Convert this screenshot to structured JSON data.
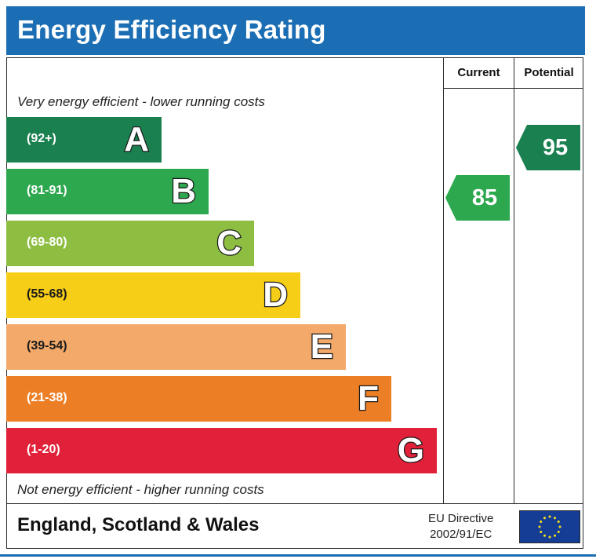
{
  "title": "Energy Efficiency Rating",
  "columns": {
    "current": "Current",
    "potential": "Potential"
  },
  "captions": {
    "top": "Very energy efficient - lower running costs",
    "bottom": "Not energy efficient - higher running costs"
  },
  "footer": {
    "region": "England, Scotland & Wales",
    "directive_line1": "EU Directive",
    "directive_line2": "2002/91/EC",
    "flag_icon": "eu-flag-icon"
  },
  "colors": {
    "title_bar": "#1b6db4",
    "A": "#1a8050",
    "B": "#2da84e",
    "C": "#8dbe42",
    "D": "#f6cd17",
    "E": "#f2a96a",
    "F": "#ec7f26",
    "G": "#e12039"
  },
  "chart_data": {
    "type": "bar",
    "bands": [
      {
        "letter": "A",
        "range": "(92+)"
      },
      {
        "letter": "B",
        "range": "(81-91)"
      },
      {
        "letter": "C",
        "range": "(69-80)"
      },
      {
        "letter": "D",
        "range": "(55-68)"
      },
      {
        "letter": "E",
        "range": "(39-54)"
      },
      {
        "letter": "F",
        "range": "(21-38)"
      },
      {
        "letter": "G",
        "range": "(1-20)"
      }
    ],
    "current": {
      "value": "85",
      "band": "B"
    },
    "potential": {
      "value": "95",
      "band": "A"
    }
  }
}
